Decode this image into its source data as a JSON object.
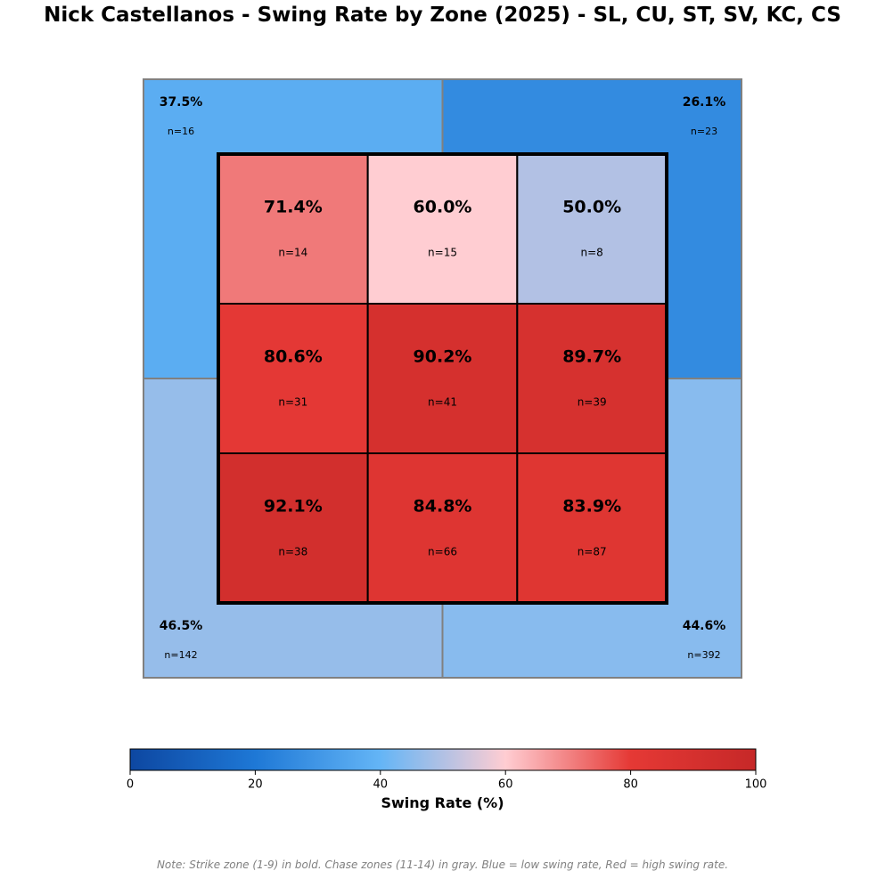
{
  "chart_data": {
    "type": "heatmap",
    "title": "Nick Castellanos - Swing Rate by Zone (2025) - SL, CU, ST, SV, KC, CS",
    "strike_zone": [
      {
        "zone": 1,
        "label": "71.4%",
        "n_label": "n=14",
        "value": 71.4
      },
      {
        "zone": 2,
        "label": "60.0%",
        "n_label": "n=15",
        "value": 60.0
      },
      {
        "zone": 3,
        "label": "50.0%",
        "n_label": "n=8",
        "value": 50.0
      },
      {
        "zone": 4,
        "label": "80.6%",
        "n_label": "n=31",
        "value": 80.6
      },
      {
        "zone": 5,
        "label": "90.2%",
        "n_label": "n=41",
        "value": 90.2
      },
      {
        "zone": 6,
        "label": "89.7%",
        "n_label": "n=39",
        "value": 89.7
      },
      {
        "zone": 7,
        "label": "92.1%",
        "n_label": "n=38",
        "value": 92.1
      },
      {
        "zone": 8,
        "label": "84.8%",
        "n_label": "n=66",
        "value": 84.8
      },
      {
        "zone": 9,
        "label": "83.9%",
        "n_label": "n=87",
        "value": 83.9
      }
    ],
    "chase_zones": [
      {
        "zone": 11,
        "position": "top-left",
        "label": "37.5%",
        "n_label": "n=16",
        "value": 37.5
      },
      {
        "zone": 12,
        "position": "top-right",
        "label": "26.1%",
        "n_label": "n=23",
        "value": 26.1
      },
      {
        "zone": 13,
        "position": "bottom-left",
        "label": "46.5%",
        "n_label": "n=142",
        "value": 46.5
      },
      {
        "zone": 14,
        "position": "bottom-right",
        "label": "44.6%",
        "n_label": "n=392",
        "value": 44.6
      }
    ],
    "colorbar": {
      "label": "Swing Rate (%)",
      "range": [
        0,
        100
      ],
      "ticks": [
        "0",
        "20",
        "40",
        "60",
        "80",
        "100"
      ],
      "colormap": "blue-white-red",
      "stops": [
        "#0d47a1",
        "#1e78d6",
        "#64b5f6",
        "#ffcdd2",
        "#e53935",
        "#c62828"
      ]
    },
    "note": "Note: Strike zone (1-9) in bold. Chase zones (11-14) in gray. Blue = low swing rate, Red = high swing rate."
  }
}
